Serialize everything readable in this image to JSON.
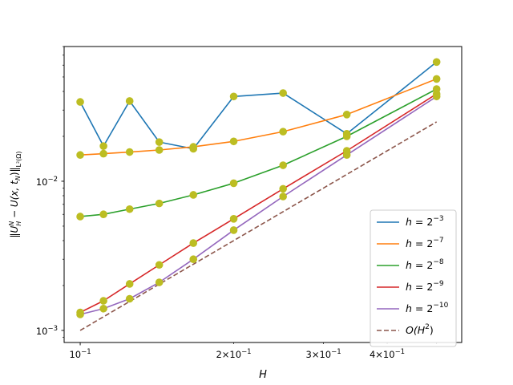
{
  "chart_data": {
    "type": "line",
    "xlabel": "H",
    "ylabel": "‖Uᴴᴴ − U(x, tₙ)‖ₗ²(Ω)",
    "ylabel_parts": {
      "main": "‖U",
      "sup": "N",
      "sub": "H",
      "mid": " − U(x, t",
      "sub2": "N",
      "end": ")‖",
      "norm_sub": "L²(Ω)"
    },
    "xscale": "log",
    "yscale": "log",
    "xlim": [
      0.093,
      0.56
    ],
    "ylim": [
      0.00083,
      0.08
    ],
    "x_major_ticks": [
      {
        "value": 0.1,
        "base": "10",
        "exp": "−1",
        "mant": ""
      }
    ],
    "x_minor_labeled_ticks": [
      {
        "value": 0.2,
        "mant": "2×",
        "base": "10",
        "exp": "−1"
      },
      {
        "value": 0.3,
        "mant": "3×",
        "base": "10",
        "exp": "−1"
      },
      {
        "value": 0.4,
        "mant": "4×",
        "base": "10",
        "exp": "−1"
      }
    ],
    "y_major_ticks": [
      {
        "value": 0.001,
        "base": "10",
        "exp": "−3"
      },
      {
        "value": 0.01,
        "base": "10",
        "exp": "−2"
      }
    ],
    "x": [
      0.1,
      0.1111,
      0.125,
      0.1429,
      0.1667,
      0.2,
      0.25,
      0.3333,
      0.5
    ],
    "series": [
      {
        "name": "h = 2⁻³",
        "label_base": "h = 2",
        "label_exp": "−3",
        "color": "#1f77b4",
        "style": "solid",
        "markers": true,
        "values": [
          0.034,
          0.0172,
          0.0345,
          0.0183,
          0.0165,
          0.037,
          0.039,
          0.0208,
          0.063
        ]
      },
      {
        "name": "h = 2⁻⁷",
        "label_base": "h = 2",
        "label_exp": "−7",
        "color": "#ff7f0e",
        "style": "solid",
        "markers": true,
        "values": [
          0.015,
          0.0153,
          0.0157,
          0.0162,
          0.017,
          0.0185,
          0.0215,
          0.028,
          0.0485
        ]
      },
      {
        "name": "h = 2⁻⁸",
        "label_base": "h = 2",
        "label_exp": "−8",
        "color": "#2ca02c",
        "style": "solid",
        "markers": true,
        "values": [
          0.0058,
          0.006,
          0.0065,
          0.0071,
          0.0081,
          0.0097,
          0.0128,
          0.02,
          0.0415
        ]
      },
      {
        "name": "h = 2⁻⁹",
        "label_base": "h = 2",
        "label_exp": "−9",
        "color": "#d62728",
        "style": "solid",
        "markers": true,
        "values": [
          0.00132,
          0.00158,
          0.00205,
          0.00275,
          0.00385,
          0.0056,
          0.0089,
          0.016,
          0.0385
        ]
      },
      {
        "name": "h = 2⁻¹⁰",
        "label_base": "h = 2",
        "label_exp": "−10",
        "color": "#9467bd",
        "style": "solid",
        "markers": true,
        "values": [
          0.00128,
          0.0014,
          0.00163,
          0.0021,
          0.003,
          0.0047,
          0.0079,
          0.015,
          0.037
        ]
      },
      {
        "name": "O(H²)",
        "label_base": "O(H",
        "label_exp": "2",
        "label_end": ")",
        "color": "#8c564b",
        "style": "dashed",
        "markers": false,
        "x": [
          0.1,
          0.5
        ],
        "values": [
          0.001,
          0.025
        ]
      }
    ],
    "marker_color": "#bcbd22",
    "grid": false,
    "legend_position": "lower-right"
  }
}
